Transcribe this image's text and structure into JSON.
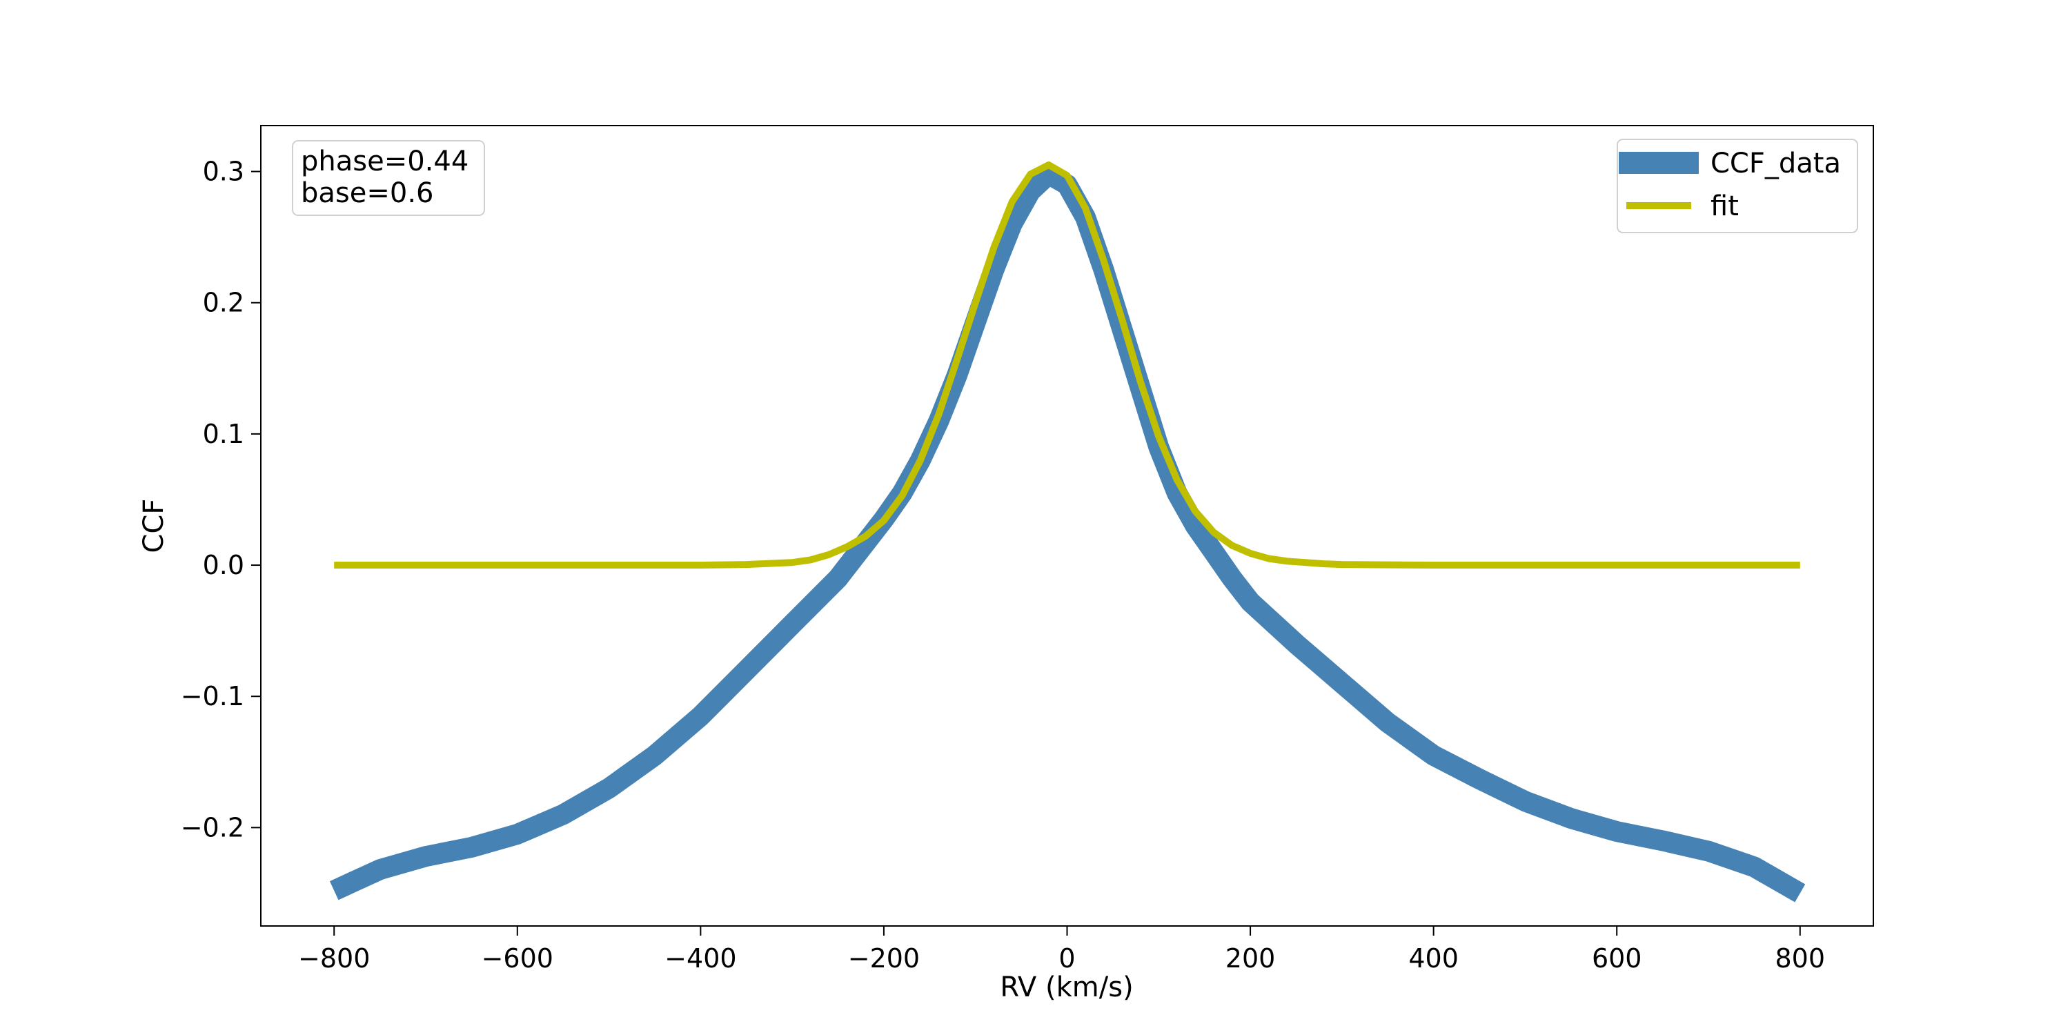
{
  "chart_data": {
    "type": "line",
    "xlabel": "RV (km/s)",
    "ylabel": "CCF",
    "xlim": [
      -880,
      880
    ],
    "ylim": [
      -0.275,
      0.335
    ],
    "x_ticks": [
      -800,
      -600,
      -400,
      -200,
      0,
      200,
      400,
      600,
      800
    ],
    "x_tick_labels": [
      "−800",
      "−600",
      "−400",
      "−200",
      "0",
      "200",
      "400",
      "600",
      "800"
    ],
    "y_ticks": [
      -0.2,
      -0.1,
      0.0,
      0.1,
      0.2,
      0.3
    ],
    "y_tick_labels": [
      "−0.2",
      "−0.1",
      "0.0",
      "0.1",
      "0.2",
      "0.3"
    ],
    "grid": false,
    "legend_placement": "upper-right",
    "annotation": {
      "lines": [
        "phase=0.44",
        "base=0.6"
      ],
      "placement": "upper-left"
    },
    "series": [
      {
        "name": "CCF_data",
        "color": "#4682b4",
        "x": [
          -800,
          -750,
          -700,
          -650,
          -600,
          -550,
          -500,
          -450,
          -400,
          -350,
          -300,
          -250,
          -200,
          -180,
          -160,
          -140,
          -120,
          -100,
          -80,
          -60,
          -40,
          -20,
          0,
          20,
          40,
          60,
          80,
          100,
          120,
          140,
          160,
          180,
          200,
          250,
          300,
          350,
          400,
          450,
          500,
          550,
          600,
          650,
          700,
          750,
          800
        ],
        "y": [
          -0.248,
          -0.232,
          -0.222,
          -0.215,
          -0.205,
          -0.19,
          -0.17,
          -0.145,
          -0.115,
          -0.08,
          -0.045,
          -0.01,
          0.035,
          0.055,
          0.08,
          0.11,
          0.145,
          0.185,
          0.225,
          0.26,
          0.285,
          0.298,
          0.29,
          0.265,
          0.225,
          0.18,
          0.135,
          0.09,
          0.055,
          0.03,
          0.01,
          -0.01,
          -0.028,
          -0.06,
          -0.09,
          -0.12,
          -0.145,
          -0.163,
          -0.18,
          -0.193,
          -0.203,
          -0.21,
          -0.218,
          -0.23,
          -0.25
        ]
      },
      {
        "name": "fit",
        "color": "#bfbf00",
        "x": [
          -800,
          -700,
          -600,
          -500,
          -400,
          -350,
          -300,
          -280,
          -260,
          -240,
          -220,
          -200,
          -180,
          -160,
          -140,
          -120,
          -100,
          -80,
          -60,
          -40,
          -20,
          0,
          20,
          40,
          60,
          80,
          100,
          120,
          140,
          160,
          180,
          200,
          220,
          240,
          260,
          280,
          300,
          400,
          500,
          600,
          700,
          800
        ],
        "y": [
          0.0,
          0.0,
          0.0,
          0.0,
          0.0,
          0.0005,
          0.002,
          0.004,
          0.008,
          0.014,
          0.022,
          0.034,
          0.053,
          0.08,
          0.115,
          0.157,
          0.2,
          0.242,
          0.277,
          0.298,
          0.305,
          0.297,
          0.272,
          0.232,
          0.187,
          0.14,
          0.098,
          0.065,
          0.041,
          0.025,
          0.015,
          0.009,
          0.005,
          0.003,
          0.002,
          0.001,
          0.0005,
          0.0,
          0.0,
          0.0,
          0.0,
          0.0
        ]
      }
    ]
  }
}
